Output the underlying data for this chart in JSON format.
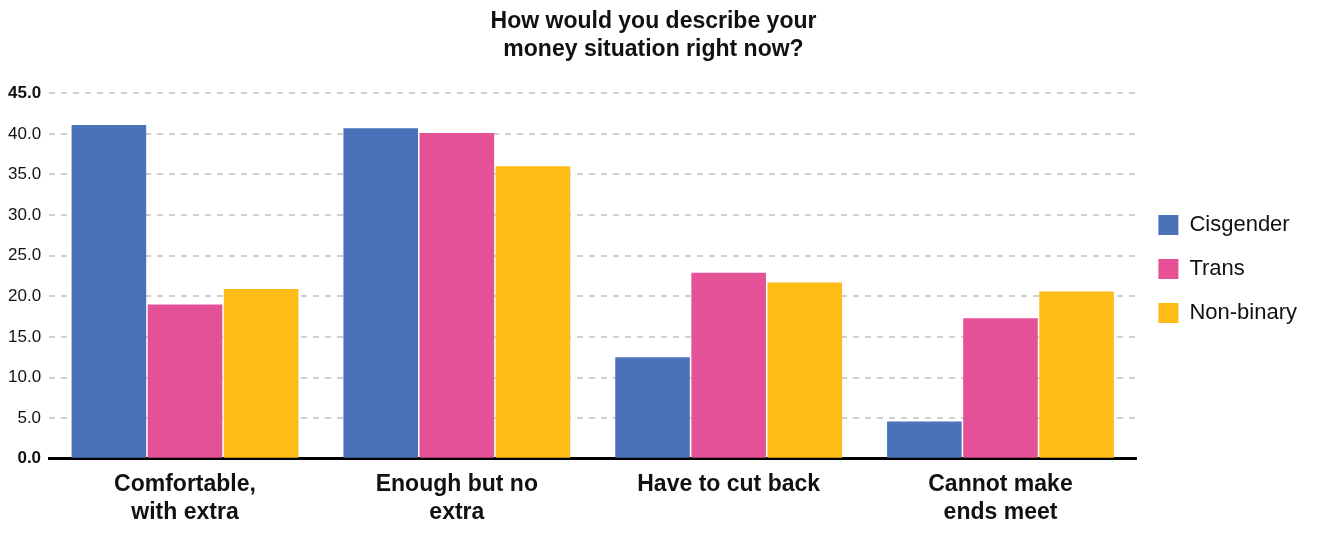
{
  "chart_data": {
    "type": "bar",
    "title": "How would you describe your money situation right now?",
    "categories": [
      "Comfortable, with extra",
      "Enough but no extra",
      "Have to cut back",
      "Cannot make ends meet"
    ],
    "series": [
      {
        "name": "Cisgender",
        "color": "#4a72b8",
        "values": [
          41.1,
          40.7,
          12.5,
          4.6
        ]
      },
      {
        "name": "Trans",
        "color": "#e45197",
        "values": [
          19.0,
          40.1,
          22.9,
          17.3
        ]
      },
      {
        "name": "Non-binary",
        "color": "#fdbc16",
        "values": [
          20.9,
          36.0,
          21.7,
          20.6
        ]
      }
    ],
    "ylim": [
      0,
      45
    ],
    "yticks": [
      {
        "value": 0,
        "label": "0.0"
      },
      {
        "value": 5,
        "label": "5.0"
      },
      {
        "value": 10,
        "label": "10.0"
      },
      {
        "value": 15,
        "label": "15.0"
      },
      {
        "value": 20,
        "label": "20.0"
      },
      {
        "value": 25,
        "label": "25.0"
      },
      {
        "value": 30,
        "label": "30.0"
      },
      {
        "value": 35,
        "label": "35.0"
      },
      {
        "value": 40,
        "label": "40.0"
      },
      {
        "value": 45,
        "label": "45.0"
      }
    ],
    "grid": "y",
    "legend": "right"
  }
}
